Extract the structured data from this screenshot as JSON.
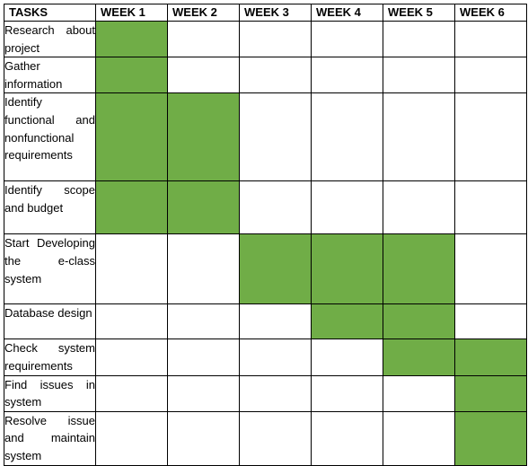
{
  "headers": [
    "TASKS",
    "WEEK 1",
    "WEEK 2",
    "WEEK 3",
    "WEEK 4",
    "WEEK 5",
    "WEEK 6"
  ],
  "highlight_color": "#70ad47",
  "rows": [
    {
      "task": "Research about project",
      "weeks": [
        1,
        0,
        0,
        0,
        0,
        0
      ]
    },
    {
      "task": "Gather information",
      "weeks": [
        1,
        0,
        0,
        0,
        0,
        0
      ]
    },
    {
      "task": "Identify functional and nonfunctional requirements",
      "weeks": [
        1,
        1,
        0,
        0,
        0,
        0
      ]
    },
    {
      "task": "Identify scope and budget",
      "weeks": [
        1,
        1,
        0,
        0,
        0,
        0
      ]
    },
    {
      "task": "Start Developing the e-class system",
      "weeks": [
        0,
        0,
        1,
        1,
        1,
        0
      ]
    },
    {
      "task": "Database design",
      "weeks": [
        0,
        0,
        0,
        1,
        1,
        0
      ]
    },
    {
      "task": "Check system requirements",
      "weeks": [
        0,
        0,
        0,
        0,
        1,
        1
      ]
    },
    {
      "task": "Find issues in system",
      "weeks": [
        0,
        0,
        0,
        0,
        0,
        1
      ]
    },
    {
      "task": "Resolve issue and maintain system",
      "weeks": [
        0,
        0,
        0,
        0,
        0,
        1
      ]
    }
  ]
}
